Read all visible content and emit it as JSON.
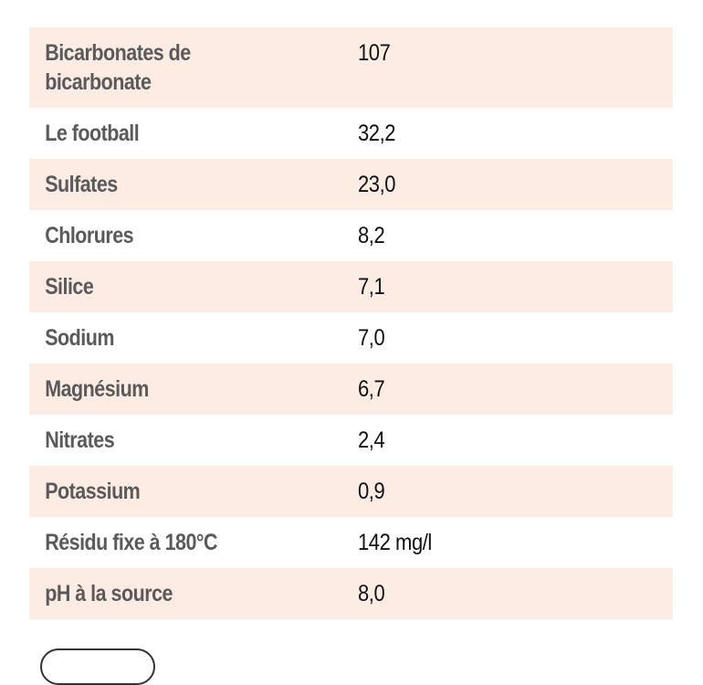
{
  "composition_table": {
    "rows": [
      {
        "name": "Bicarbonates de bicarbonate",
        "value": "107"
      },
      {
        "name": "Le football",
        "value": "32,2"
      },
      {
        "name": "Sulfates",
        "value": "23,0"
      },
      {
        "name": "Chlorures",
        "value": "8,2"
      },
      {
        "name": "Silice",
        "value": "7,1"
      },
      {
        "name": "Sodium",
        "value": "7,0"
      },
      {
        "name": "Magnésium",
        "value": "6,7"
      },
      {
        "name": "Nitrates",
        "value": "2,4"
      },
      {
        "name": "Potassium",
        "value": "0,9"
      },
      {
        "name": "Résidu fixe à 180°C",
        "value": "142 mg/l"
      },
      {
        "name": "pH à la source",
        "value": "8,0"
      }
    ]
  },
  "colors": {
    "row_shade": "#fcece3",
    "label_text": "#5a5a5a",
    "value_text": "#111111"
  }
}
